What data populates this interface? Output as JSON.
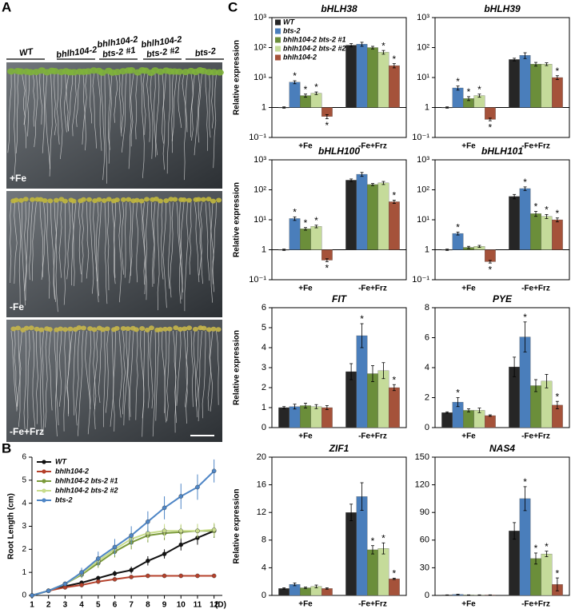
{
  "panel_labels": [
    "A",
    "B",
    "C"
  ],
  "photo": {
    "genotypes": [
      [
        "WT"
      ],
      [
        "bhlh104-2"
      ],
      [
        "bhlh104-2",
        "bts-2 #1"
      ],
      [
        "bhlh104-2",
        "bts-2 #2"
      ],
      [
        "bts-2"
      ]
    ],
    "conditions": [
      "+Fe",
      "-Fe",
      "-Fe+Frz"
    ]
  },
  "chart_data": [
    {
      "type": "line",
      "ylabel": "Root Length (cm)",
      "xlabel": "(D)",
      "x": [
        1,
        2,
        3,
        4,
        5,
        6,
        7,
        8,
        9,
        10,
        11,
        12
      ],
      "xlim": [
        1,
        12.5
      ],
      "xticks": [
        1,
        2,
        3,
        4,
        5,
        6,
        7,
        8,
        9,
        10,
        11,
        12
      ],
      "ylim": [
        0,
        6
      ],
      "yticks": [
        0,
        1,
        2,
        3,
        4,
        5,
        6
      ],
      "legend": "upper left",
      "series": [
        {
          "name": "WT",
          "color": "#111111",
          "values": [
            0,
            0.2,
            0.4,
            0.55,
            0.75,
            0.95,
            1.1,
            1.5,
            1.8,
            2.2,
            2.5,
            2.8
          ],
          "errors": [
            0,
            0.03,
            0.05,
            0.08,
            0.1,
            0.12,
            0.15,
            0.2,
            0.2,
            0.25,
            0.3,
            0.3
          ]
        },
        {
          "name": "bhlh104-2",
          "color": "#b5412b",
          "values": [
            0,
            0.2,
            0.35,
            0.45,
            0.6,
            0.7,
            0.8,
            0.85,
            0.85,
            0.85,
            0.85,
            0.85
          ],
          "errors": [
            0,
            0.03,
            0.04,
            0.05,
            0.05,
            0.06,
            0.06,
            0.06,
            0.06,
            0.06,
            0.06,
            0.06
          ]
        },
        {
          "name": "bhlh104-2 bts-2 #1",
          "color": "#7a9a3a",
          "values": [
            0,
            0.2,
            0.5,
            0.9,
            1.4,
            1.9,
            2.3,
            2.6,
            2.7,
            2.75,
            2.8,
            2.8
          ],
          "errors": [
            0,
            0.05,
            0.1,
            0.15,
            0.2,
            0.25,
            0.3,
            0.3,
            0.3,
            0.3,
            0.3,
            0.3
          ]
        },
        {
          "name": "bhlh104-2 bts-2 #2",
          "color": "#c8dc8c",
          "values": [
            0,
            0.2,
            0.5,
            0.95,
            1.5,
            2.0,
            2.45,
            2.7,
            2.8,
            2.8,
            2.8,
            2.85
          ],
          "errors": [
            0,
            0.05,
            0.1,
            0.15,
            0.2,
            0.25,
            0.3,
            0.3,
            0.3,
            0.3,
            0.3,
            0.3
          ]
        },
        {
          "name": "bts-2",
          "color": "#4f86c6",
          "values": [
            0,
            0.2,
            0.5,
            1.0,
            1.6,
            2.1,
            2.6,
            3.2,
            3.8,
            4.3,
            4.7,
            5.4
          ],
          "errors": [
            0,
            0.05,
            0.1,
            0.2,
            0.3,
            0.35,
            0.4,
            0.45,
            0.5,
            0.55,
            0.55,
            0.5
          ]
        }
      ]
    },
    {
      "type": "bar",
      "title": "bHLH38",
      "ylabel": "Relative expression",
      "log": true,
      "legend": "upper left",
      "categories": [
        "+Fe",
        "-Fe+Frz"
      ],
      "ylim": [
        0.1,
        1000
      ],
      "yticks": [
        {
          "value": 0.1,
          "label": "10⁻¹"
        },
        1,
        {
          "value": 10,
          "label": "10¹"
        },
        {
          "value": 100,
          "label": "10²"
        },
        {
          "value": 1000,
          "label": "10³"
        }
      ],
      "series": [
        {
          "name": "WT",
          "color": "#262626",
          "values": [
            1,
            120
          ],
          "errors": [
            0.05,
            15
          ],
          "sig": [
            null,
            null
          ]
        },
        {
          "name": "bts-2",
          "color": "#4a7ebb",
          "values": [
            7,
            130
          ],
          "errors": [
            0.8,
            20
          ],
          "sig": [
            "*",
            null
          ]
        },
        {
          "name": "bhlh104-2 bts-2 #1",
          "color": "#6b8e3a",
          "values": [
            2.5,
            100
          ],
          "errors": [
            0.3,
            10
          ],
          "sig": [
            "*",
            null
          ]
        },
        {
          "name": "bhlh104-2 bts-2 #2",
          "color": "#c5db9a",
          "values": [
            3,
            70
          ],
          "errors": [
            0.3,
            10
          ],
          "sig": [
            "*",
            "*"
          ]
        },
        {
          "name": "bhlh104-2",
          "color": "#a5523a",
          "values": [
            0.5,
            25
          ],
          "errors": [
            0.08,
            4
          ],
          "sig": [
            "*",
            "*"
          ]
        }
      ]
    },
    {
      "type": "bar",
      "title": "bHLH39",
      "log": true,
      "categories": [
        "+Fe",
        "-Fe+Frz"
      ],
      "ylim": [
        0.1,
        1000
      ],
      "yticks": [
        {
          "value": 0.1,
          "label": "10⁻¹"
        },
        1,
        {
          "value": 10,
          "label": "10¹"
        },
        {
          "value": 100,
          "label": "10²"
        },
        {
          "value": 1000,
          "label": "10³"
        }
      ],
      "series": [
        {
          "color": "#262626",
          "values": [
            1,
            40
          ],
          "errors": [
            0.05,
            4
          ],
          "sig": [
            null,
            null
          ]
        },
        {
          "color": "#4a7ebb",
          "values": [
            4.5,
            55
          ],
          "errors": [
            0.7,
            12
          ],
          "sig": [
            "*",
            null
          ]
        },
        {
          "color": "#6b8e3a",
          "values": [
            2,
            28
          ],
          "errors": [
            0.3,
            4
          ],
          "sig": [
            "*",
            null
          ]
        },
        {
          "color": "#c5db9a",
          "values": [
            2.5,
            28
          ],
          "errors": [
            0.3,
            3
          ],
          "sig": [
            "*",
            null
          ]
        },
        {
          "color": "#a5523a",
          "values": [
            0.4,
            10
          ],
          "errors": [
            0.04,
            1.5
          ],
          "sig": [
            "*",
            "*"
          ]
        }
      ]
    },
    {
      "type": "bar",
      "title": "bHLH100",
      "ylabel": "Relative expression",
      "log": true,
      "categories": [
        "+Fe",
        "-Fe+Frz"
      ],
      "ylim": [
        0.1,
        1000
      ],
      "yticks": [
        {
          "value": 0.1,
          "label": "10⁻¹"
        },
        1,
        {
          "value": 10,
          "label": "10¹"
        },
        {
          "value": 100,
          "label": "10²"
        },
        {
          "value": 1000,
          "label": "10³"
        }
      ],
      "series": [
        {
          "color": "#262626",
          "values": [
            1,
            210
          ],
          "errors": [
            0.05,
            20
          ],
          "sig": [
            null,
            null
          ]
        },
        {
          "color": "#4a7ebb",
          "values": [
            11,
            330
          ],
          "errors": [
            1.5,
            50
          ],
          "sig": [
            "*",
            null
          ]
        },
        {
          "color": "#6b8e3a",
          "values": [
            5,
            150
          ],
          "errors": [
            0.5,
            12
          ],
          "sig": [
            "*",
            null
          ]
        },
        {
          "color": "#c5db9a",
          "values": [
            6,
            170
          ],
          "errors": [
            0.6,
            20
          ],
          "sig": [
            "*",
            null
          ]
        },
        {
          "color": "#a5523a",
          "values": [
            0.45,
            40
          ],
          "errors": [
            0.05,
            5
          ],
          "sig": [
            "*",
            "*"
          ]
        }
      ]
    },
    {
      "type": "bar",
      "title": "bHLH101",
      "log": true,
      "categories": [
        "+Fe",
        "-Fe+Frz"
      ],
      "ylim": [
        0.1,
        1000
      ],
      "yticks": [
        {
          "value": 0.1,
          "label": "10⁻¹"
        },
        1,
        {
          "value": 10,
          "label": "10¹"
        },
        {
          "value": 100,
          "label": "10²"
        },
        {
          "value": 1000,
          "label": "10³"
        }
      ],
      "series": [
        {
          "color": "#262626",
          "values": [
            1,
            60
          ],
          "errors": [
            0.05,
            10
          ],
          "sig": [
            null,
            null
          ]
        },
        {
          "color": "#4a7ebb",
          "values": [
            3.5,
            110
          ],
          "errors": [
            0.4,
            15
          ],
          "sig": [
            "*",
            "*"
          ]
        },
        {
          "color": "#6b8e3a",
          "values": [
            1.2,
            16
          ],
          "errors": [
            0.1,
            3
          ],
          "sig": [
            null,
            "*"
          ]
        },
        {
          "color": "#c5db9a",
          "values": [
            1.3,
            13
          ],
          "errors": [
            0.1,
            2
          ],
          "sig": [
            null,
            "*"
          ]
        },
        {
          "color": "#a5523a",
          "values": [
            0.4,
            10
          ],
          "errors": [
            0.04,
            1.5
          ],
          "sig": [
            "*",
            "*"
          ]
        }
      ]
    },
    {
      "type": "bar",
      "title": "FIT",
      "ylabel": "Relative expression",
      "categories": [
        "+Fe",
        "-Fe+Frz"
      ],
      "ylim": [
        0,
        6
      ],
      "yticks": [
        0,
        1,
        2,
        3,
        4,
        5,
        6
      ],
      "series": [
        {
          "color": "#262626",
          "values": [
            1,
            2.8
          ],
          "errors": [
            0.05,
            0.4
          ],
          "sig": [
            null,
            null
          ]
        },
        {
          "color": "#4a7ebb",
          "values": [
            1.05,
            4.6
          ],
          "errors": [
            0.12,
            0.6
          ],
          "sig": [
            null,
            "*"
          ]
        },
        {
          "color": "#6b8e3a",
          "values": [
            1.1,
            2.7
          ],
          "errors": [
            0.12,
            0.4
          ],
          "sig": [
            null,
            null
          ]
        },
        {
          "color": "#c5db9a",
          "values": [
            1.05,
            2.85
          ],
          "errors": [
            0.1,
            0.4
          ],
          "sig": [
            null,
            null
          ]
        },
        {
          "color": "#a5523a",
          "values": [
            1.0,
            2.0
          ],
          "errors": [
            0.1,
            0.15
          ],
          "sig": [
            null,
            "*"
          ]
        }
      ]
    },
    {
      "type": "bar",
      "title": "PYE",
      "categories": [
        "+Fe",
        "-Fe+Frz"
      ],
      "ylim": [
        0,
        8
      ],
      "yticks": [
        0,
        2,
        4,
        6,
        8
      ],
      "series": [
        {
          "color": "#262626",
          "values": [
            1,
            4.05
          ],
          "errors": [
            0.05,
            0.65
          ],
          "sig": [
            null,
            null
          ]
        },
        {
          "color": "#4a7ebb",
          "values": [
            1.7,
            6.05
          ],
          "errors": [
            0.3,
            1.0
          ],
          "sig": [
            "*",
            "*"
          ]
        },
        {
          "color": "#6b8e3a",
          "values": [
            1.15,
            2.8
          ],
          "errors": [
            0.1,
            0.4
          ],
          "sig": [
            null,
            null
          ]
        },
        {
          "color": "#c5db9a",
          "values": [
            1.15,
            3.1
          ],
          "errors": [
            0.15,
            0.45
          ],
          "sig": [
            null,
            null
          ]
        },
        {
          "color": "#a5523a",
          "values": [
            0.8,
            1.5
          ],
          "errors": [
            0.05,
            0.25
          ],
          "sig": [
            null,
            "*"
          ]
        }
      ]
    },
    {
      "type": "bar",
      "title": "ZIF1",
      "ylabel": "Relative expression",
      "categories": [
        "+Fe",
        "-Fe+Frz"
      ],
      "ylim": [
        0,
        20
      ],
      "yticks": [
        0,
        4,
        8,
        12,
        16,
        20
      ],
      "series": [
        {
          "color": "#262626",
          "values": [
            1,
            12
          ],
          "errors": [
            0.1,
            1.2
          ],
          "sig": [
            null,
            null
          ]
        },
        {
          "color": "#4a7ebb",
          "values": [
            1.6,
            14.3
          ],
          "errors": [
            0.2,
            2.0
          ],
          "sig": [
            null,
            null
          ]
        },
        {
          "color": "#6b8e3a",
          "values": [
            1.1,
            6.6
          ],
          "errors": [
            0.1,
            0.6
          ],
          "sig": [
            null,
            "*"
          ]
        },
        {
          "color": "#c5db9a",
          "values": [
            1.3,
            6.8
          ],
          "errors": [
            0.2,
            0.8
          ],
          "sig": [
            null,
            "*"
          ]
        },
        {
          "color": "#a5523a",
          "values": [
            1.0,
            2.4
          ],
          "errors": [
            0.1,
            0.1
          ],
          "sig": [
            null,
            "*"
          ]
        }
      ]
    },
    {
      "type": "bar",
      "title": "NAS4",
      "categories": [
        "+Fe",
        "-Fe+Frz"
      ],
      "ylim": [
        0,
        150
      ],
      "yticks": [
        0,
        30,
        60,
        90,
        120,
        150
      ],
      "series": [
        {
          "color": "#262626",
          "values": [
            0.5,
            70
          ],
          "errors": [
            0.1,
            9
          ],
          "sig": [
            null,
            null
          ]
        },
        {
          "color": "#4a7ebb",
          "values": [
            1,
            105
          ],
          "errors": [
            0.3,
            13
          ],
          "sig": [
            null,
            "*"
          ]
        },
        {
          "color": "#6b8e3a",
          "values": [
            0.5,
            40
          ],
          "errors": [
            0.1,
            6
          ],
          "sig": [
            null,
            "*"
          ]
        },
        {
          "color": "#c5db9a",
          "values": [
            0.5,
            45
          ],
          "errors": [
            0.1,
            3
          ],
          "sig": [
            null,
            "*"
          ]
        },
        {
          "color": "#a5523a",
          "values": [
            0.5,
            12
          ],
          "errors": [
            0.1,
            7
          ],
          "sig": [
            null,
            "*"
          ]
        }
      ]
    }
  ]
}
